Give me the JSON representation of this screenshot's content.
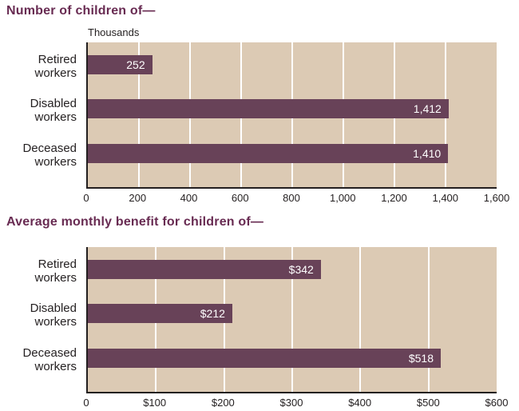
{
  "colors": {
    "title": "#682b52",
    "bar": "#684258",
    "plot_background": "#dccab4",
    "gridline": "#ffffff",
    "axis_line": "#231f20",
    "text": "#231f20",
    "bar_value_label": "#ffffff"
  },
  "chart_data": [
    {
      "type": "bar",
      "orientation": "horizontal",
      "title": "Number of children of—",
      "unit_label": "Thousands",
      "categories": [
        "Retired workers",
        "Disabled workers",
        "Deceased workers"
      ],
      "values": [
        252,
        1412,
        1410
      ],
      "value_labels": [
        "252",
        "1,412",
        "1,410"
      ],
      "xlim": [
        0,
        1600
      ],
      "ticks": [
        {
          "label": "0",
          "value": 0
        },
        {
          "label": "200",
          "value": 200
        },
        {
          "label": "400",
          "value": 400
        },
        {
          "label": "600",
          "value": 600
        },
        {
          "label": "800",
          "value": 800
        },
        {
          "label": "1,000",
          "value": 1000
        },
        {
          "label": "1,200",
          "value": 1200
        },
        {
          "label": "1,400",
          "value": 1400
        },
        {
          "label": "1,600",
          "value": 1600
        }
      ],
      "grid": "vertical white gridlines at interior ticks",
      "legend": "none"
    },
    {
      "type": "bar",
      "orientation": "horizontal",
      "title": "Average monthly benefit for children of—",
      "unit_label": "",
      "categories": [
        "Retired workers",
        "Disabled workers",
        "Deceased workers"
      ],
      "values": [
        342,
        212,
        518
      ],
      "value_labels": [
        "$342",
        "$212",
        "$518"
      ],
      "xlim": [
        0,
        600
      ],
      "ticks": [
        {
          "label": "0",
          "value": 0
        },
        {
          "label": "$100",
          "value": 100
        },
        {
          "label": "$200",
          "value": 200
        },
        {
          "label": "$300",
          "value": 300
        },
        {
          "label": "$400",
          "value": 400
        },
        {
          "label": "$500",
          "value": 500
        },
        {
          "label": "$600",
          "value": 600
        }
      ],
      "grid": "vertical white gridlines at interior ticks",
      "legend": "none"
    }
  ]
}
